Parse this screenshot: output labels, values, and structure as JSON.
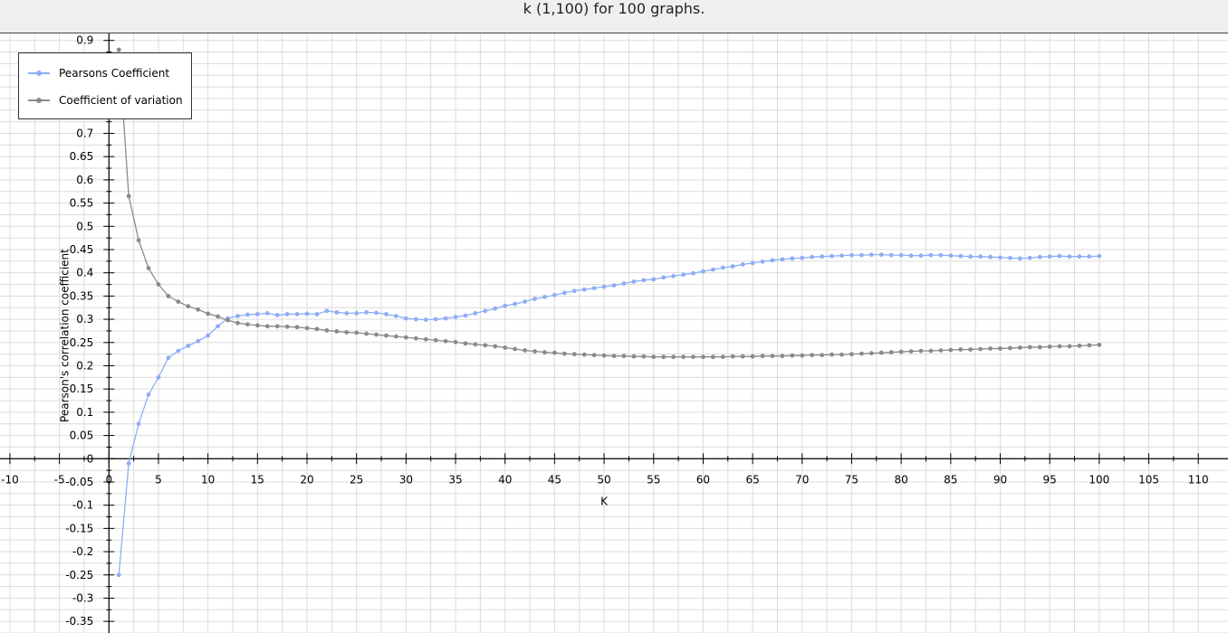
{
  "chart_data": {
    "type": "line",
    "title": "k (1,100) for 100 graphs.",
    "xlabel": "K",
    "ylabel": "Pearson's correlation coefficient",
    "xlim": [
      -11,
      113
    ],
    "ylim": [
      -0.375,
      0.915
    ],
    "x_ticks": [
      -10,
      -5,
      0,
      5,
      10,
      15,
      20,
      25,
      30,
      35,
      40,
      45,
      50,
      55,
      60,
      65,
      70,
      75,
      80,
      85,
      90,
      95,
      100,
      105,
      110
    ],
    "y_ticks": [
      0.9,
      0.85,
      0.8,
      0.75,
      0.7,
      0.65,
      0.6,
      0.55,
      0.5,
      0.45,
      0.4,
      0.35,
      0.3,
      0.25,
      0.2,
      0.15,
      0.1,
      0.05,
      0,
      -0.05,
      -0.1,
      -0.15,
      -0.2,
      -0.25,
      -0.3,
      -0.35
    ],
    "grid": true,
    "legend_position": "top-left",
    "series": [
      {
        "name": "Pearsons Coefficient",
        "color": "#8eaef5",
        "x": [
          1,
          2,
          3,
          4,
          5,
          6,
          7,
          8,
          9,
          10,
          11,
          12,
          13,
          14,
          15,
          16,
          17,
          18,
          19,
          20,
          21,
          22,
          23,
          24,
          25,
          26,
          27,
          28,
          29,
          30,
          31,
          32,
          33,
          34,
          35,
          36,
          37,
          38,
          39,
          40,
          41,
          42,
          43,
          44,
          45,
          46,
          47,
          48,
          49,
          50,
          51,
          52,
          53,
          54,
          55,
          56,
          57,
          58,
          59,
          60,
          61,
          62,
          63,
          64,
          65,
          66,
          67,
          68,
          69,
          70,
          71,
          72,
          73,
          74,
          75,
          76,
          77,
          78,
          79,
          80,
          81,
          82,
          83,
          84,
          85,
          86,
          87,
          88,
          89,
          90,
          91,
          92,
          93,
          94,
          95,
          96,
          97,
          98,
          99,
          100
        ],
        "values": [
          -0.25,
          -0.01,
          0.075,
          0.138,
          0.175,
          0.217,
          0.232,
          0.243,
          0.253,
          0.265,
          0.285,
          0.302,
          0.307,
          0.31,
          0.311,
          0.313,
          0.309,
          0.311,
          0.311,
          0.312,
          0.311,
          0.318,
          0.315,
          0.313,
          0.313,
          0.315,
          0.314,
          0.311,
          0.307,
          0.302,
          0.3,
          0.299,
          0.3,
          0.302,
          0.305,
          0.308,
          0.313,
          0.318,
          0.323,
          0.329,
          0.333,
          0.338,
          0.344,
          0.348,
          0.352,
          0.357,
          0.361,
          0.364,
          0.367,
          0.37,
          0.373,
          0.377,
          0.381,
          0.384,
          0.386,
          0.39,
          0.393,
          0.396,
          0.399,
          0.403,
          0.407,
          0.411,
          0.414,
          0.418,
          0.421,
          0.424,
          0.427,
          0.429,
          0.431,
          0.432,
          0.434,
          0.435,
          0.436,
          0.437,
          0.438,
          0.438,
          0.439,
          0.439,
          0.438,
          0.438,
          0.437,
          0.437,
          0.438,
          0.438,
          0.437,
          0.436,
          0.435,
          0.435,
          0.434,
          0.433,
          0.432,
          0.431,
          0.432,
          0.434,
          0.435,
          0.436,
          0.435,
          0.435,
          0.435,
          0.436
        ]
      },
      {
        "name": "Coefficient of variation",
        "color": "#8a8a8a",
        "x": [
          1,
          2,
          3,
          4,
          5,
          6,
          7,
          8,
          9,
          10,
          11,
          12,
          13,
          14,
          15,
          16,
          17,
          18,
          19,
          20,
          21,
          22,
          23,
          24,
          25,
          26,
          27,
          28,
          29,
          30,
          31,
          32,
          33,
          34,
          35,
          36,
          37,
          38,
          39,
          40,
          41,
          42,
          43,
          44,
          45,
          46,
          47,
          48,
          49,
          50,
          51,
          52,
          53,
          54,
          55,
          56,
          57,
          58,
          59,
          60,
          61,
          62,
          63,
          64,
          65,
          66,
          67,
          68,
          69,
          70,
          71,
          72,
          73,
          74,
          75,
          76,
          77,
          78,
          79,
          80,
          81,
          82,
          83,
          84,
          85,
          86,
          87,
          88,
          89,
          90,
          91,
          92,
          93,
          94,
          95,
          96,
          97,
          98,
          99,
          100
        ],
        "values": [
          0.88,
          0.565,
          0.47,
          0.41,
          0.375,
          0.35,
          0.338,
          0.328,
          0.321,
          0.312,
          0.306,
          0.298,
          0.292,
          0.289,
          0.287,
          0.285,
          0.285,
          0.284,
          0.283,
          0.281,
          0.279,
          0.276,
          0.274,
          0.272,
          0.271,
          0.269,
          0.267,
          0.265,
          0.263,
          0.261,
          0.259,
          0.257,
          0.255,
          0.253,
          0.251,
          0.248,
          0.246,
          0.244,
          0.242,
          0.239,
          0.236,
          0.233,
          0.231,
          0.229,
          0.228,
          0.226,
          0.225,
          0.224,
          0.223,
          0.222,
          0.221,
          0.221,
          0.22,
          0.22,
          0.219,
          0.219,
          0.219,
          0.219,
          0.219,
          0.219,
          0.219,
          0.219,
          0.22,
          0.22,
          0.22,
          0.221,
          0.221,
          0.221,
          0.222,
          0.222,
          0.223,
          0.223,
          0.224,
          0.224,
          0.225,
          0.226,
          0.227,
          0.228,
          0.229,
          0.23,
          0.231,
          0.232,
          0.232,
          0.233,
          0.234,
          0.235,
          0.235,
          0.236,
          0.237,
          0.237,
          0.238,
          0.239,
          0.24,
          0.24,
          0.241,
          0.242,
          0.242,
          0.243,
          0.244,
          0.245
        ]
      }
    ]
  }
}
